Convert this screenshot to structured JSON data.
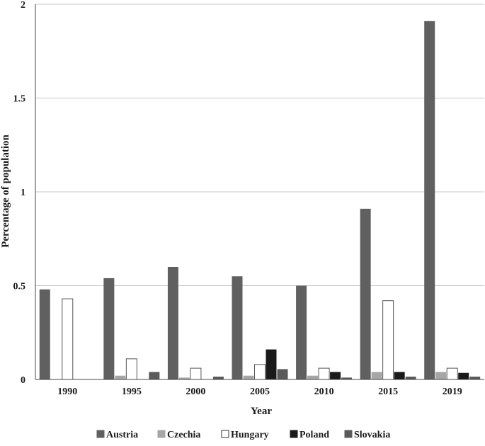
{
  "chart_data": {
    "type": "bar",
    "title": "",
    "xlabel": "Year",
    "ylabel": "Percentage of population",
    "ylim": [
      0,
      2
    ],
    "yticks": [
      "0",
      "0.5",
      "1",
      "1.5",
      "2"
    ],
    "categories": [
      "1990",
      "1995",
      "2000",
      "2005",
      "2010",
      "2015",
      "2019"
    ],
    "grid": true,
    "legend_position": "bottom",
    "series": [
      {
        "name": "Austria",
        "color": "#606060",
        "values": [
          0.48,
          0.54,
          0.6,
          0.55,
          0.5,
          0.91,
          1.91
        ]
      },
      {
        "name": "Czechia",
        "color": "#a6a6a6",
        "values": [
          0.0,
          0.02,
          0.01,
          0.02,
          0.02,
          0.04,
          0.04
        ]
      },
      {
        "name": "Hungary",
        "color": "#ffffff",
        "values": [
          0.43,
          0.11,
          0.06,
          0.08,
          0.06,
          0.42,
          0.06
        ]
      },
      {
        "name": "Poland",
        "color": "#1a1a1a",
        "values": [
          0.0,
          0.0,
          0.0,
          0.16,
          0.04,
          0.04,
          0.035
        ]
      },
      {
        "name": "Slovakia",
        "color": "#5a5a5a",
        "values": [
          0.0,
          0.04,
          0.015,
          0.055,
          0.01,
          0.015,
          0.015
        ]
      }
    ]
  }
}
